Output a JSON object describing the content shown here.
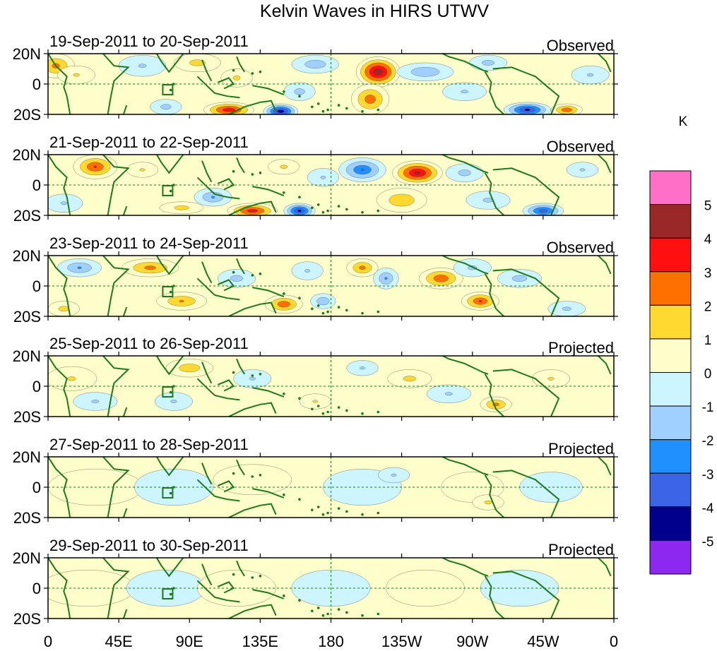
{
  "chart_data": {
    "type": "heatmap",
    "title": "Kelvin Waves in HIRS UTWV",
    "colorbar": {
      "unit": "K",
      "levels": [
        5,
        4,
        3,
        2,
        1,
        0,
        -1,
        -2,
        -3,
        -4,
        -5
      ],
      "colors": [
        "#ff6ec7",
        "#9b2828",
        "#ff1010",
        "#ff7000",
        "#ffd930",
        "#ffffcc",
        "#ccf5ff",
        "#a0d0ff",
        "#2090ff",
        "#3c64e6",
        "#00008c",
        "#8c28f0"
      ]
    },
    "x_ticks": [
      "0",
      "45E",
      "90E",
      "135E",
      "180",
      "135W",
      "90W",
      "45W",
      "0"
    ],
    "y_ticks": [
      "20N",
      "0",
      "20S"
    ],
    "xlim": [
      0,
      360
    ],
    "ylim": [
      -20,
      20
    ],
    "panels": [
      {
        "date_range": "19-Sep-2011 to 20-Sep-2011",
        "status": "Observed",
        "features": [
          {
            "lon": 5,
            "lat": 12,
            "value": 2.5,
            "wx": 12,
            "wy": 8
          },
          {
            "lon": 18,
            "lat": 6,
            "value": 1.2,
            "wx": 12,
            "wy": 6
          },
          {
            "lon": 60,
            "lat": 12,
            "value": -1.2,
            "wx": 15,
            "wy": 7
          },
          {
            "lon": 75,
            "lat": -15,
            "value": -1.5,
            "wx": 10,
            "wy": 5
          },
          {
            "lon": 95,
            "lat": 14,
            "value": 1.5,
            "wx": 15,
            "wy": 6
          },
          {
            "lon": 115,
            "lat": -17,
            "value": 4,
            "wx": 16,
            "wy": 5
          },
          {
            "lon": 120,
            "lat": 4,
            "value": 1.3,
            "wx": 10,
            "wy": 6
          },
          {
            "lon": 148,
            "lat": -18,
            "value": -5,
            "wx": 11,
            "wy": 5
          },
          {
            "lon": 160,
            "lat": -5,
            "value": -1.5,
            "wx": 10,
            "wy": 6
          },
          {
            "lon": 170,
            "lat": 13,
            "value": -1.8,
            "wx": 15,
            "wy": 6
          },
          {
            "lon": 210,
            "lat": 8,
            "value": 5,
            "wx": 14,
            "wy": 10
          },
          {
            "lon": 205,
            "lat": -10,
            "value": 2.8,
            "wx": 12,
            "wy": 10
          },
          {
            "lon": 240,
            "lat": 8,
            "value": -2,
            "wx": 18,
            "wy": 6
          },
          {
            "lon": 265,
            "lat": -5,
            "value": -1.2,
            "wx": 14,
            "wy": 6
          },
          {
            "lon": 280,
            "lat": 14,
            "value": -1.5,
            "wx": 12,
            "wy": 5
          },
          {
            "lon": 305,
            "lat": -17,
            "value": -4.5,
            "wx": 15,
            "wy": 5
          },
          {
            "lon": 330,
            "lat": -17,
            "value": 3,
            "wx": 10,
            "wy": 4
          },
          {
            "lon": 345,
            "lat": 6,
            "value": -1.2,
            "wx": 12,
            "wy": 6
          }
        ]
      },
      {
        "date_range": "21-Sep-2011 to 22-Sep-2011",
        "status": "Observed",
        "features": [
          {
            "lon": 30,
            "lat": 12,
            "value": 3.2,
            "wx": 14,
            "wy": 8
          },
          {
            "lon": 10,
            "lat": -12,
            "value": -1.2,
            "wx": 12,
            "wy": 6
          },
          {
            "lon": 60,
            "lat": 10,
            "value": 1.2,
            "wx": 10,
            "wy": 5
          },
          {
            "lon": 85,
            "lat": -15,
            "value": 1.5,
            "wx": 14,
            "wy": 4
          },
          {
            "lon": 105,
            "lat": -8,
            "value": -2.2,
            "wx": 12,
            "wy": 6
          },
          {
            "lon": 130,
            "lat": -17,
            "value": 3.8,
            "wx": 16,
            "wy": 5
          },
          {
            "lon": 160,
            "lat": -17,
            "value": -4.5,
            "wx": 10,
            "wy": 5
          },
          {
            "lon": 150,
            "lat": 12,
            "value": 1.3,
            "wx": 10,
            "wy": 5
          },
          {
            "lon": 175,
            "lat": 5,
            "value": -1.2,
            "wx": 10,
            "wy": 6
          },
          {
            "lon": 200,
            "lat": 10,
            "value": -3.2,
            "wx": 15,
            "wy": 8
          },
          {
            "lon": 235,
            "lat": 8,
            "value": 4.5,
            "wx": 16,
            "wy": 8
          },
          {
            "lon": 225,
            "lat": -10,
            "value": 2,
            "wx": 16,
            "wy": 8
          },
          {
            "lon": 265,
            "lat": 8,
            "value": -1.5,
            "wx": 12,
            "wy": 6
          },
          {
            "lon": 280,
            "lat": -10,
            "value": -1.3,
            "wx": 14,
            "wy": 6
          },
          {
            "lon": 315,
            "lat": -17,
            "value": -3.8,
            "wx": 13,
            "wy": 5
          },
          {
            "lon": 340,
            "lat": 10,
            "value": -1.2,
            "wx": 10,
            "wy": 5
          }
        ]
      },
      {
        "date_range": "23-Sep-2011 to 24-Sep-2011",
        "status": "Observed",
        "features": [
          {
            "lon": 20,
            "lat": 12,
            "value": -2.2,
            "wx": 14,
            "wy": 6
          },
          {
            "lon": 10,
            "lat": -15,
            "value": 1.5,
            "wx": 10,
            "wy": 5
          },
          {
            "lon": 65,
            "lat": 12,
            "value": 2.5,
            "wx": 18,
            "wy": 6
          },
          {
            "lon": 85,
            "lat": -10,
            "value": 2.2,
            "wx": 16,
            "wy": 6
          },
          {
            "lon": 120,
            "lat": 5,
            "value": -1.5,
            "wx": 12,
            "wy": 6
          },
          {
            "lon": 150,
            "lat": -12,
            "value": 3,
            "wx": 12,
            "wy": 6
          },
          {
            "lon": 165,
            "lat": 10,
            "value": -1.2,
            "wx": 10,
            "wy": 6
          },
          {
            "lon": 175,
            "lat": -10,
            "value": -2,
            "wx": 8,
            "wy": 5
          },
          {
            "lon": 200,
            "lat": 12,
            "value": 2.5,
            "wx": 10,
            "wy": 6
          },
          {
            "lon": 215,
            "lat": 5,
            "value": -2.2,
            "wx": 8,
            "wy": 7
          },
          {
            "lon": 250,
            "lat": 5,
            "value": 3,
            "wx": 14,
            "wy": 7
          },
          {
            "lon": 270,
            "lat": 12,
            "value": -1.3,
            "wx": 12,
            "wy": 6
          },
          {
            "lon": 275,
            "lat": -10,
            "value": 3.2,
            "wx": 12,
            "wy": 6
          },
          {
            "lon": 300,
            "lat": 5,
            "value": -1.5,
            "wx": 14,
            "wy": 6
          },
          {
            "lon": 330,
            "lat": -15,
            "value": -1.3,
            "wx": 12,
            "wy": 5
          }
        ]
      },
      {
        "date_range": "25-Sep-2011 to 26-Sep-2011",
        "status": "Projected",
        "features": [
          {
            "lon": 15,
            "lat": 5,
            "value": 1.2,
            "wx": 16,
            "wy": 8
          },
          {
            "lon": 30,
            "lat": -10,
            "value": -1.2,
            "wx": 14,
            "wy": 6
          },
          {
            "lon": 90,
            "lat": 12,
            "value": 1.8,
            "wx": 15,
            "wy": 6
          },
          {
            "lon": 80,
            "lat": -10,
            "value": -1.2,
            "wx": 12,
            "wy": 6
          },
          {
            "lon": 130,
            "lat": 5,
            "value": -1.2,
            "wx": 12,
            "wy": 6
          },
          {
            "lon": 170,
            "lat": -10,
            "value": 1.2,
            "wx": 10,
            "wy": 5
          },
          {
            "lon": 200,
            "lat": 12,
            "value": -1.2,
            "wx": 10,
            "wy": 5
          },
          {
            "lon": 230,
            "lat": 5,
            "value": 1.4,
            "wx": 14,
            "wy": 6
          },
          {
            "lon": 255,
            "lat": -5,
            "value": -1.2,
            "wx": 14,
            "wy": 6
          },
          {
            "lon": 285,
            "lat": -12,
            "value": 2.5,
            "wx": 10,
            "wy": 5
          },
          {
            "lon": 320,
            "lat": 5,
            "value": 1.2,
            "wx": 12,
            "wy": 6
          }
        ]
      },
      {
        "date_range": "27-Sep-2011 to 28-Sep-2011",
        "status": "Projected",
        "features": [
          {
            "lon": 30,
            "lat": 0,
            "value": 0.6,
            "wx": 30,
            "wy": 12
          },
          {
            "lon": 80,
            "lat": 0,
            "value": -0.6,
            "wx": 25,
            "wy": 12
          },
          {
            "lon": 130,
            "lat": 5,
            "value": 0.6,
            "wx": 25,
            "wy": 10
          },
          {
            "lon": 200,
            "lat": 0,
            "value": -0.6,
            "wx": 25,
            "wy": 12
          },
          {
            "lon": 220,
            "lat": 8,
            "value": -1.2,
            "wx": 10,
            "wy": 5
          },
          {
            "lon": 270,
            "lat": 0,
            "value": 0.6,
            "wx": 20,
            "wy": 10
          },
          {
            "lon": 280,
            "lat": -10,
            "value": 1.3,
            "wx": 10,
            "wy": 5
          },
          {
            "lon": 320,
            "lat": 0,
            "value": -0.6,
            "wx": 20,
            "wy": 10
          }
        ]
      },
      {
        "date_range": "29-Sep-2011 to 30-Sep-2011",
        "status": "Projected",
        "features": [
          {
            "lon": 25,
            "lat": 0,
            "value": 0.6,
            "wx": 30,
            "wy": 12
          },
          {
            "lon": 75,
            "lat": 0,
            "value": -0.6,
            "wx": 25,
            "wy": 12
          },
          {
            "lon": 120,
            "lat": 0,
            "value": 0.6,
            "wx": 25,
            "wy": 12
          },
          {
            "lon": 180,
            "lat": 0,
            "value": -0.6,
            "wx": 25,
            "wy": 12
          },
          {
            "lon": 240,
            "lat": 0,
            "value": 0.6,
            "wx": 25,
            "wy": 12
          },
          {
            "lon": 300,
            "lat": 0,
            "value": -0.6,
            "wx": 25,
            "wy": 12
          }
        ]
      }
    ]
  }
}
